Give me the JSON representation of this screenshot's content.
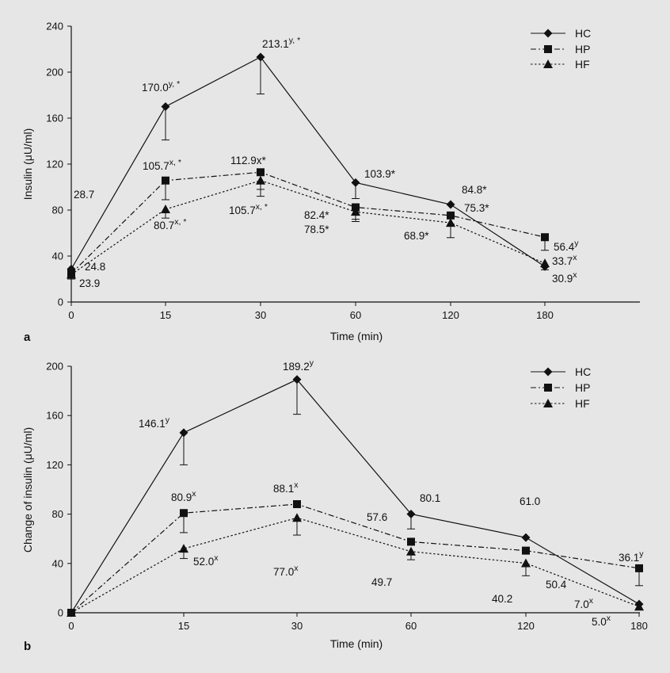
{
  "chart_data": [
    {
      "type": "line",
      "panel_label": "a",
      "xlabel": "Time (min)",
      "ylabel": "Insulin (μU/ml)",
      "categories": [
        "0",
        "15",
        "30",
        "60",
        "120",
        "180"
      ],
      "ylim": [
        0,
        240
      ],
      "yticks": [
        "0",
        "40",
        "80",
        "120",
        "160",
        "200",
        "240"
      ],
      "grid": false,
      "legend": "top-right",
      "series": [
        {
          "name": "HC",
          "marker": "diamond",
          "dash": "solid",
          "values": [
            28.7,
            170.0,
            213.1,
            103.9,
            84.8,
            30.9
          ],
          "err_low": [
            25,
            141,
            181,
            90,
            84.8,
            28
          ],
          "err_high": [
            28.7,
            170.0,
            213.1,
            103.9,
            84.8,
            30.9
          ]
        },
        {
          "name": "HP",
          "marker": "square",
          "dash": "dashdot",
          "values": [
            24.8,
            105.7,
            112.9,
            82.4,
            75.3,
            56.4
          ],
          "err_low": [
            20,
            89,
            98,
            72,
            75.3,
            45
          ],
          "err_high": [
            24.8,
            105.7,
            112.9,
            82.4,
            75.3,
            56.4
          ]
        },
        {
          "name": "HF",
          "marker": "triangle",
          "dash": "dotted",
          "values": [
            23.9,
            80.7,
            105.7,
            78.5,
            68.9,
            33.7
          ],
          "err_low": [
            20,
            73,
            92,
            70,
            56,
            33.7
          ],
          "err_high": [
            23.9,
            80.7,
            105.7,
            78.5,
            68.9,
            33.7
          ]
        }
      ],
      "annotations": [
        {
          "text": "28.7",
          "sup": ""
        },
        {
          "text": "24.8",
          "sup": ""
        },
        {
          "text": "23.9",
          "sup": ""
        },
        {
          "text": "170.0",
          "sup": "y, *"
        },
        {
          "text": "213.1",
          "sup": "y, *"
        },
        {
          "text": "105.7",
          "sup": "x, *"
        },
        {
          "text": "112.9x*",
          "sup": ""
        },
        {
          "text": "80.7",
          "sup": "x, *"
        },
        {
          "text": "105.7",
          "sup": "x, *"
        },
        {
          "text": "103.9*",
          "sup": ""
        },
        {
          "text": "82.4*",
          "sup": ""
        },
        {
          "text": "78.5*",
          "sup": ""
        },
        {
          "text": "84.8*",
          "sup": ""
        },
        {
          "text": "75.3*",
          "sup": ""
        },
        {
          "text": "68.9*",
          "sup": ""
        },
        {
          "text": "56.4",
          "sup": "y"
        },
        {
          "text": "33.7",
          "sup": "x"
        },
        {
          "text": "30.9",
          "sup": "x"
        }
      ]
    },
    {
      "type": "line",
      "panel_label": "b",
      "xlabel": "Time (min)",
      "ylabel": "Change of insulin (μU/ml)",
      "categories": [
        "0",
        "15",
        "30",
        "60",
        "120",
        "180"
      ],
      "ylim": [
        0,
        200
      ],
      "yticks": [
        "0",
        "40",
        "80",
        "120",
        "160",
        "200"
      ],
      "grid": false,
      "legend": "top-right",
      "series": [
        {
          "name": "HC",
          "marker": "diamond",
          "dash": "solid",
          "values": [
            0,
            146.1,
            189.2,
            80.1,
            61.0,
            7.0
          ],
          "err_low": [
            0,
            120,
            161,
            68,
            61.0,
            7.0
          ],
          "err_high": [
            0,
            146.1,
            189.2,
            80.1,
            61.0,
            7.0
          ]
        },
        {
          "name": "HP",
          "marker": "square",
          "dash": "dashdot",
          "values": [
            0,
            80.9,
            88.1,
            57.6,
            50.4,
            36.1
          ],
          "err_low": [
            0,
            65,
            88.1,
            57.6,
            50.4,
            22
          ],
          "err_high": [
            0,
            80.9,
            88.1,
            57.6,
            50.4,
            36.1
          ]
        },
        {
          "name": "HF",
          "marker": "triangle",
          "dash": "dotted",
          "values": [
            0,
            52.0,
            77.0,
            49.7,
            40.2,
            5.0
          ],
          "err_low": [
            0,
            44,
            63,
            43,
            30,
            5.0
          ],
          "err_high": [
            0,
            52.0,
            77.0,
            49.7,
            40.2,
            5.0
          ]
        }
      ],
      "annotations": [
        {
          "text": "146.1",
          "sup": "y"
        },
        {
          "text": "189.2",
          "sup": "y"
        },
        {
          "text": "80.9",
          "sup": "x"
        },
        {
          "text": "88.1",
          "sup": "x"
        },
        {
          "text": "52.0",
          "sup": "x"
        },
        {
          "text": "77.0",
          "sup": "x"
        },
        {
          "text": "80.1",
          "sup": ""
        },
        {
          "text": "57.6",
          "sup": ""
        },
        {
          "text": "49.7",
          "sup": ""
        },
        {
          "text": "61.0",
          "sup": ""
        },
        {
          "text": "50.4",
          "sup": ""
        },
        {
          "text": "40.2",
          "sup": ""
        },
        {
          "text": "36.1",
          "sup": "y"
        },
        {
          "text": "7.0",
          "sup": "x"
        },
        {
          "text": "5.0",
          "sup": "x"
        }
      ]
    }
  ]
}
